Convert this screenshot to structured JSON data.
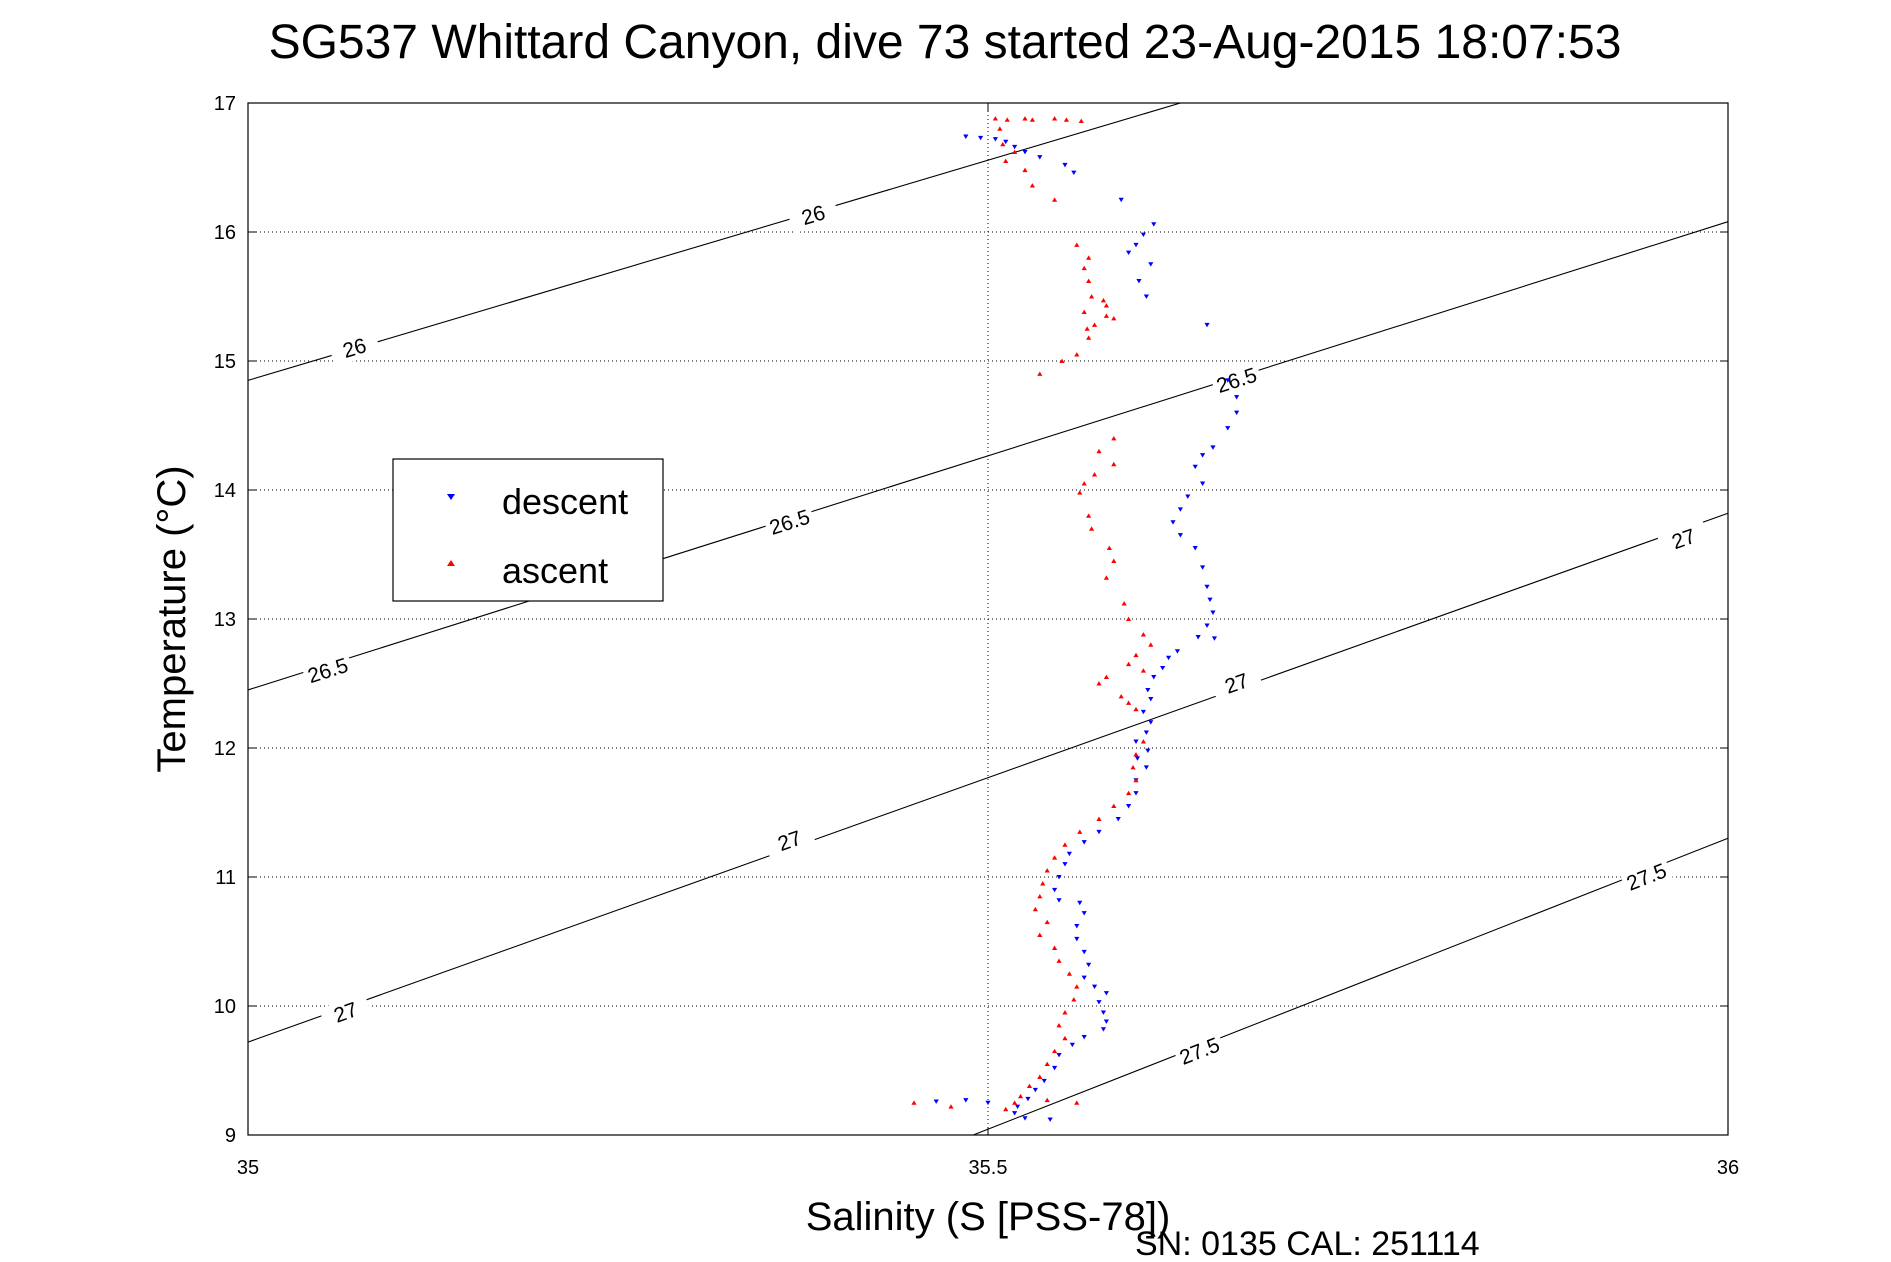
{
  "title": "SG537 Whittard Canyon, dive 73 started 23-Aug-2015 18:07:53",
  "footer": "SN: 0135  CAL: 251114",
  "chart_data": {
    "type": "scatter",
    "xlabel": "Salinity (S [PSS-78])",
    "ylabel": "Temperature (°C)",
    "xlim": [
      35,
      36
    ],
    "ylim": [
      9,
      17
    ],
    "xticks": [
      "35",
      "35.5",
      "36"
    ],
    "yticks": [
      "9",
      "10",
      "11",
      "12",
      "13",
      "14",
      "15",
      "16",
      "17"
    ],
    "grid": "dotted",
    "legend": {
      "placement": "left-center",
      "entries": [
        "descent",
        "ascent"
      ]
    },
    "colors": {
      "descent": "#0000ff",
      "ascent": "#ff0000",
      "contour": "#000000"
    },
    "density_contours": [
      {
        "level": "26",
        "line": [
          [
            35.0,
            14.85
          ],
          [
            35.63,
            17.0
          ]
        ],
        "labels": [
          [
            35.072,
            15.1
          ],
          [
            35.382,
            16.13
          ]
        ]
      },
      {
        "level": "26.5",
        "line": [
          [
            35.0,
            12.45
          ],
          [
            36.0,
            16.08
          ]
        ],
        "labels": [
          [
            35.054,
            12.6
          ],
          [
            35.366,
            13.75
          ],
          [
            35.668,
            14.85
          ]
        ]
      },
      {
        "level": "27",
        "line": [
          [
            35.0,
            9.72
          ],
          [
            36.0,
            13.82
          ]
        ],
        "labels": [
          [
            35.066,
            9.95
          ],
          [
            35.366,
            11.28
          ],
          [
            35.668,
            12.5
          ],
          [
            35.97,
            13.62
          ]
        ]
      },
      {
        "level": "27.5",
        "line": [
          [
            35.49,
            9.0
          ],
          [
            36.0,
            11.3
          ]
        ],
        "labels": [
          [
            35.643,
            9.65
          ],
          [
            35.945,
            11.0
          ]
        ]
      }
    ],
    "series": [
      {
        "name": "descent",
        "marker": "triangle-down",
        "points": [
          [
            35.485,
            16.74
          ],
          [
            35.495,
            16.73
          ],
          [
            35.505,
            16.72
          ],
          [
            35.512,
            16.7
          ],
          [
            35.518,
            16.66
          ],
          [
            35.525,
            16.62
          ],
          [
            35.535,
            16.58
          ],
          [
            35.552,
            16.52
          ],
          [
            35.558,
            16.46
          ],
          [
            35.59,
            16.25
          ],
          [
            35.612,
            16.06
          ],
          [
            35.605,
            15.98
          ],
          [
            35.6,
            15.9
          ],
          [
            35.595,
            15.84
          ],
          [
            35.61,
            15.75
          ],
          [
            35.602,
            15.62
          ],
          [
            35.607,
            15.5
          ],
          [
            35.648,
            15.28
          ],
          [
            35.662,
            14.85
          ],
          [
            35.668,
            14.72
          ],
          [
            35.668,
            14.6
          ],
          [
            35.662,
            14.48
          ],
          [
            35.652,
            14.33
          ],
          [
            35.645,
            14.27
          ],
          [
            35.64,
            14.18
          ],
          [
            35.645,
            14.05
          ],
          [
            35.635,
            13.95
          ],
          [
            35.63,
            13.85
          ],
          [
            35.625,
            13.75
          ],
          [
            35.63,
            13.65
          ],
          [
            35.64,
            13.55
          ],
          [
            35.645,
            13.4
          ],
          [
            35.648,
            13.25
          ],
          [
            35.65,
            13.15
          ],
          [
            35.652,
            13.05
          ],
          [
            35.648,
            12.95
          ],
          [
            35.642,
            12.86
          ],
          [
            35.653,
            12.85
          ],
          [
            35.628,
            12.75
          ],
          [
            35.622,
            12.7
          ],
          [
            35.618,
            12.62
          ],
          [
            35.612,
            12.55
          ],
          [
            35.608,
            12.45
          ],
          [
            35.61,
            12.38
          ],
          [
            35.605,
            12.28
          ],
          [
            35.61,
            12.2
          ],
          [
            35.607,
            12.12
          ],
          [
            35.6,
            12.05
          ],
          [
            35.608,
            11.98
          ],
          [
            35.601,
            11.92
          ],
          [
            35.607,
            11.85
          ],
          [
            35.6,
            11.75
          ],
          [
            35.6,
            11.65
          ],
          [
            35.595,
            11.55
          ],
          [
            35.588,
            11.45
          ],
          [
            35.575,
            11.35
          ],
          [
            35.565,
            11.27
          ],
          [
            35.555,
            11.18
          ],
          [
            35.552,
            11.1
          ],
          [
            35.548,
            11.0
          ],
          [
            35.545,
            10.9
          ],
          [
            35.548,
            10.82
          ],
          [
            35.562,
            10.8
          ],
          [
            35.565,
            10.72
          ],
          [
            35.56,
            10.62
          ],
          [
            35.56,
            10.52
          ],
          [
            35.565,
            10.42
          ],
          [
            35.568,
            10.32
          ],
          [
            35.565,
            10.22
          ],
          [
            35.572,
            10.15
          ],
          [
            35.58,
            10.1
          ],
          [
            35.575,
            10.03
          ],
          [
            35.578,
            9.95
          ],
          [
            35.58,
            9.88
          ],
          [
            35.578,
            9.82
          ],
          [
            35.565,
            9.76
          ],
          [
            35.557,
            9.7
          ],
          [
            35.548,
            9.62
          ],
          [
            35.545,
            9.52
          ],
          [
            35.538,
            9.42
          ],
          [
            35.532,
            9.35
          ],
          [
            35.527,
            9.28
          ],
          [
            35.52,
            9.22
          ],
          [
            35.518,
            9.17
          ],
          [
            35.525,
            9.13
          ],
          [
            35.542,
            9.12
          ],
          [
            35.5,
            9.25
          ],
          [
            35.485,
            9.27
          ],
          [
            35.465,
            9.26
          ]
        ]
      },
      {
        "name": "ascent",
        "marker": "triangle-up",
        "points": [
          [
            35.505,
            16.88
          ],
          [
            35.513,
            16.87
          ],
          [
            35.525,
            16.88
          ],
          [
            35.53,
            16.87
          ],
          [
            35.545,
            16.88
          ],
          [
            35.553,
            16.87
          ],
          [
            35.563,
            16.86
          ],
          [
            35.508,
            16.8
          ],
          [
            35.51,
            16.68
          ],
          [
            35.518,
            16.62
          ],
          [
            35.512,
            16.55
          ],
          [
            35.525,
            16.48
          ],
          [
            35.53,
            16.36
          ],
          [
            35.545,
            16.25
          ],
          [
            35.56,
            15.9
          ],
          [
            35.568,
            15.8
          ],
          [
            35.565,
            15.72
          ],
          [
            35.568,
            15.62
          ],
          [
            35.57,
            15.5
          ],
          [
            35.578,
            15.47
          ],
          [
            35.58,
            15.43
          ],
          [
            35.565,
            15.38
          ],
          [
            35.58,
            15.35
          ],
          [
            35.585,
            15.33
          ],
          [
            35.572,
            15.28
          ],
          [
            35.567,
            15.25
          ],
          [
            35.568,
            15.18
          ],
          [
            35.56,
            15.05
          ],
          [
            35.55,
            15.0
          ],
          [
            35.535,
            14.9
          ],
          [
            35.585,
            14.4
          ],
          [
            35.575,
            14.3
          ],
          [
            35.585,
            14.2
          ],
          [
            35.572,
            14.12
          ],
          [
            35.565,
            14.05
          ],
          [
            35.562,
            13.98
          ],
          [
            35.568,
            13.8
          ],
          [
            35.57,
            13.7
          ],
          [
            35.582,
            13.55
          ],
          [
            35.585,
            13.45
          ],
          [
            35.58,
            13.32
          ],
          [
            35.592,
            13.12
          ],
          [
            35.595,
            13.0
          ],
          [
            35.605,
            12.88
          ],
          [
            35.61,
            12.8
          ],
          [
            35.6,
            12.72
          ],
          [
            35.595,
            12.65
          ],
          [
            35.605,
            12.6
          ],
          [
            35.58,
            12.55
          ],
          [
            35.575,
            12.5
          ],
          [
            35.59,
            12.4
          ],
          [
            35.595,
            12.35
          ],
          [
            35.6,
            12.3
          ],
          [
            35.605,
            12.05
          ],
          [
            35.6,
            11.95
          ],
          [
            35.598,
            11.85
          ],
          [
            35.6,
            11.75
          ],
          [
            35.595,
            11.65
          ],
          [
            35.585,
            11.55
          ],
          [
            35.575,
            11.45
          ],
          [
            35.562,
            11.35
          ],
          [
            35.552,
            11.25
          ],
          [
            35.545,
            11.15
          ],
          [
            35.54,
            11.05
          ],
          [
            35.537,
            10.95
          ],
          [
            35.535,
            10.85
          ],
          [
            35.532,
            10.75
          ],
          [
            35.54,
            10.65
          ],
          [
            35.535,
            10.55
          ],
          [
            35.545,
            10.45
          ],
          [
            35.548,
            10.35
          ],
          [
            35.555,
            10.25
          ],
          [
            35.56,
            10.15
          ],
          [
            35.558,
            10.05
          ],
          [
            35.552,
            9.95
          ],
          [
            35.548,
            9.85
          ],
          [
            35.552,
            9.75
          ],
          [
            35.545,
            9.65
          ],
          [
            35.54,
            9.55
          ],
          [
            35.535,
            9.45
          ],
          [
            35.528,
            9.38
          ],
          [
            35.522,
            9.3
          ],
          [
            35.518,
            9.25
          ],
          [
            35.512,
            9.2
          ],
          [
            35.54,
            9.27
          ],
          [
            35.56,
            9.25
          ],
          [
            35.45,
            9.25
          ],
          [
            35.475,
            9.22
          ]
        ]
      }
    ]
  }
}
